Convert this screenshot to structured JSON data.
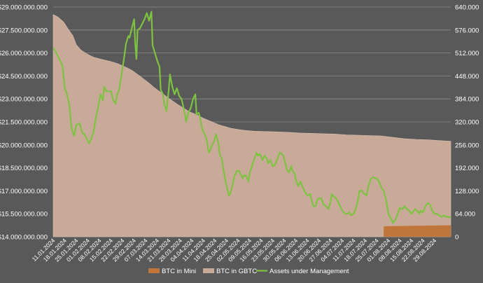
{
  "chart_data": {
    "type": "area",
    "title": "",
    "xlabel": "",
    "ylabel": "",
    "ylabel_right": "",
    "grid": true,
    "legend_position": "bottom",
    "y_left": {
      "range": [
        14000000,
        29000000
      ],
      "ticks": [
        "$14.000.000.000",
        "$15.500.000.000",
        "$17.000.000.000",
        "$18.500.000.000",
        "$20.000.000.000",
        "$21.500.000.000",
        "$23.000.000.000",
        "$24.500.000.000",
        "$26.000.000.000",
        "$27.500.000.000",
        "$29.000.000.000"
      ]
    },
    "y_right": {
      "range": [
        0,
        640000
      ],
      "ticks": [
        "0",
        "64.000",
        "128.000",
        "192.000",
        "256.000",
        "320.000",
        "384.000",
        "448.000",
        "512.000",
        "576.000",
        "640.000"
      ]
    },
    "x_labels": [
      "11.01.2024",
      "18.01.2024",
      "25.01.2024",
      "01.02.2024",
      "08.02.2024",
      "15.02.2024",
      "22.02.2024",
      "29.02.2024",
      "07.03.2024",
      "14.03.2024",
      "21.03.2024",
      "28.03.2024",
      "04.04.2024",
      "11.04.2024",
      "18.04.2024",
      "25.04.2024",
      "02.05.2024",
      "09.05.2024",
      "16.05.2024",
      "23.05.2024",
      "30.05.2024",
      "06.06.2024",
      "13.06.2024",
      "20.06.2024",
      "27.06.2024",
      "04.07.2024",
      "11.07.2024",
      "18.07.2024",
      "25.07.2024",
      "01.08.2024",
      "08.08.2024",
      "15.08.2024",
      "22.08.2024",
      "29.08.2024"
    ],
    "series": [
      {
        "name": "BTC in Mini",
        "axis": "right",
        "color": "#c0753a",
        "points": [
          [
            0,
            0
          ],
          [
            28.6,
            0
          ],
          [
            28.6,
            29000
          ],
          [
            29,
            29500
          ],
          [
            30,
            30000
          ],
          [
            31,
            30500
          ],
          [
            32,
            31000
          ],
          [
            33,
            31500
          ],
          [
            34,
            32000
          ],
          [
            34.4,
            32000
          ]
        ]
      },
      {
        "name": "BTC in GBTC",
        "axis": "right",
        "color": "#c9aa99",
        "points": [
          [
            0,
            619000
          ],
          [
            0.4,
            612000
          ],
          [
            0.9,
            598000
          ],
          [
            1.3,
            578000
          ],
          [
            1.7,
            560000
          ],
          [
            2,
            535000
          ],
          [
            2.4,
            520000
          ],
          [
            3,
            508000
          ],
          [
            3.5,
            500000
          ],
          [
            4.2,
            494000
          ],
          [
            5,
            488000
          ],
          [
            5.6,
            482000
          ],
          [
            6.3,
            472000
          ],
          [
            6.8,
            464000
          ],
          [
            7.3,
            452000
          ],
          [
            7.8,
            440000
          ],
          [
            8.3,
            428000
          ],
          [
            8.8,
            414000
          ],
          [
            9.4,
            400000
          ],
          [
            10,
            386000
          ],
          [
            10.6,
            372000
          ],
          [
            11.2,
            360000
          ],
          [
            11.8,
            348000
          ],
          [
            12.4,
            340000
          ],
          [
            13,
            330000
          ],
          [
            13.6,
            322000
          ],
          [
            14.4,
            311000
          ],
          [
            15.4,
            302000
          ],
          [
            16.4,
            297000
          ],
          [
            17.4,
            294000
          ],
          [
            18.4,
            293000
          ],
          [
            19.5,
            292000
          ],
          [
            20.4,
            291000
          ],
          [
            21.4,
            289000
          ],
          [
            22.4,
            288000
          ],
          [
            23.4,
            287000
          ],
          [
            24.4,
            286000
          ],
          [
            25.4,
            284000
          ],
          [
            26.4,
            283000
          ],
          [
            27.4,
            282000
          ],
          [
            28.4,
            281000
          ],
          [
            29.4,
            277000
          ],
          [
            30.4,
            273000
          ],
          [
            31.4,
            271000
          ],
          [
            32.4,
            270000
          ],
          [
            33.4,
            268000
          ],
          [
            34.4,
            266000
          ]
        ]
      },
      {
        "name": "Assets under Management",
        "axis": "left",
        "color": "#7ec242",
        "points": [
          [
            0,
            26330000
          ],
          [
            0.2,
            26100000
          ],
          [
            0.4,
            25800000
          ],
          [
            0.6,
            25500000
          ],
          [
            0.8,
            25200000
          ],
          [
            1,
            23700000
          ],
          [
            1.2,
            23300000
          ],
          [
            1.4,
            22600000
          ],
          [
            1.6,
            21000000
          ],
          [
            1.8,
            20600000
          ],
          [
            2,
            21300000
          ],
          [
            2.3,
            21400000
          ],
          [
            2.5,
            20800000
          ],
          [
            2.7,
            20700000
          ],
          [
            2.9,
            20400000
          ],
          [
            3.1,
            20100000
          ],
          [
            3.3,
            20400000
          ],
          [
            3.5,
            20900000
          ],
          [
            3.7,
            21800000
          ],
          [
            3.9,
            22500000
          ],
          [
            4.1,
            23300000
          ],
          [
            4.3,
            22900000
          ],
          [
            4.4,
            23800000
          ],
          [
            4.6,
            23500000
          ],
          [
            4.8,
            23500000
          ],
          [
            5,
            23500000
          ],
          [
            5.2,
            22900000
          ],
          [
            5.4,
            22700000
          ],
          [
            5.5,
            23200000
          ],
          [
            5.7,
            23600000
          ],
          [
            5.9,
            24500000
          ],
          [
            6.1,
            25500000
          ],
          [
            6.3,
            26600000
          ],
          [
            6.5,
            27100000
          ],
          [
            6.6,
            27000000
          ],
          [
            6.8,
            27600000
          ],
          [
            7,
            28200000
          ],
          [
            7.1,
            26600000
          ],
          [
            7.2,
            25600000
          ],
          [
            7.3,
            27500000
          ],
          [
            7.5,
            27600000
          ],
          [
            7.7,
            27900000
          ],
          [
            7.9,
            28200000
          ],
          [
            8.1,
            28600000
          ],
          [
            8.3,
            28100000
          ],
          [
            8.5,
            28700000
          ],
          [
            8.6,
            26500000
          ],
          [
            8.8,
            26000000
          ],
          [
            9,
            25500000
          ],
          [
            9.2,
            25100000
          ],
          [
            9.3,
            23600000
          ],
          [
            9.5,
            23300000
          ],
          [
            9.6,
            22700000
          ],
          [
            9.8,
            22200000
          ],
          [
            10,
            23600000
          ],
          [
            10.1,
            24600000
          ],
          [
            10.3,
            23800000
          ],
          [
            10.5,
            23300000
          ],
          [
            10.7,
            23700000
          ],
          [
            10.9,
            23200000
          ],
          [
            11.1,
            23000000
          ],
          [
            11.2,
            22700000
          ],
          [
            11.4,
            22000000
          ],
          [
            11.5,
            21500000
          ],
          [
            11.7,
            22100000
          ],
          [
            11.9,
            22400000
          ],
          [
            12.1,
            23000000
          ],
          [
            12.3,
            23300000
          ],
          [
            12.4,
            22000000
          ],
          [
            12.6,
            22100000
          ],
          [
            12.7,
            21800000
          ],
          [
            12.9,
            21000000
          ],
          [
            13.1,
            20700000
          ],
          [
            13.3,
            20300000
          ],
          [
            13.4,
            19700000
          ],
          [
            13.5,
            19500000
          ],
          [
            13.7,
            19900000
          ],
          [
            13.9,
            20200000
          ],
          [
            14.1,
            20700000
          ],
          [
            14.3,
            20100000
          ],
          [
            14.4,
            19400000
          ],
          [
            14.6,
            19100000
          ],
          [
            14.7,
            18500000
          ],
          [
            14.9,
            17700000
          ],
          [
            15,
            17300000
          ],
          [
            15.2,
            16700000
          ],
          [
            15.3,
            16800000
          ],
          [
            15.5,
            17300000
          ],
          [
            15.7,
            18000000
          ],
          [
            15.9,
            18300000
          ],
          [
            16.1,
            18300000
          ],
          [
            16.2,
            18100000
          ],
          [
            16.4,
            17800000
          ],
          [
            16.5,
            18000000
          ],
          [
            16.7,
            18000000
          ],
          [
            16.9,
            17600000
          ],
          [
            17,
            18200000
          ],
          [
            17.2,
            18600000
          ],
          [
            17.4,
            19100000
          ],
          [
            17.6,
            19500000
          ],
          [
            17.7,
            19300000
          ],
          [
            17.9,
            19400000
          ],
          [
            18.1,
            19000000
          ],
          [
            18.3,
            19300000
          ],
          [
            18.5,
            19100000
          ],
          [
            18.6,
            18800000
          ],
          [
            18.8,
            19000000
          ],
          [
            19,
            18600000
          ],
          [
            19.2,
            18700000
          ],
          [
            19.4,
            19100000
          ],
          [
            19.6,
            19500000
          ],
          [
            19.8,
            19400000
          ],
          [
            19.9,
            19300000
          ],
          [
            20.1,
            18800000
          ],
          [
            20.2,
            18400000
          ],
          [
            20.4,
            18200000
          ],
          [
            20.6,
            18600000
          ],
          [
            20.7,
            18300000
          ],
          [
            20.9,
            18100000
          ],
          [
            21,
            17700000
          ],
          [
            21.2,
            17300000
          ],
          [
            21.4,
            17600000
          ],
          [
            21.6,
            17200000
          ],
          [
            21.8,
            16900000
          ],
          [
            22,
            16700000
          ],
          [
            22.2,
            16800000
          ],
          [
            22.4,
            16300000
          ],
          [
            22.5,
            16000000
          ],
          [
            22.7,
            16000000
          ],
          [
            22.9,
            16500000
          ],
          [
            23.1,
            16500000
          ],
          [
            23.2,
            16500000
          ],
          [
            23.4,
            16100000
          ],
          [
            23.6,
            16000000
          ],
          [
            23.8,
            15800000
          ],
          [
            24,
            16300000
          ],
          [
            24.1,
            16800000
          ],
          [
            24.3,
            16600000
          ],
          [
            24.5,
            16500000
          ],
          [
            24.7,
            16200000
          ],
          [
            24.9,
            15900000
          ],
          [
            25.1,
            15600000
          ],
          [
            25.3,
            15500000
          ],
          [
            25.5,
            15500000
          ],
          [
            25.6,
            15600000
          ],
          [
            25.8,
            15400000
          ],
          [
            26,
            15500000
          ],
          [
            26.2,
            15900000
          ],
          [
            26.4,
            16500000
          ],
          [
            26.5,
            17000000
          ],
          [
            26.7,
            17000000
          ],
          [
            26.9,
            16800000
          ],
          [
            27.1,
            16700000
          ],
          [
            27.3,
            17400000
          ],
          [
            27.5,
            17800000
          ],
          [
            27.7,
            17900000
          ],
          [
            27.9,
            17800000
          ],
          [
            28,
            17800000
          ],
          [
            28.2,
            17600000
          ],
          [
            28.4,
            17200000
          ],
          [
            28.6,
            17000000
          ],
          [
            28.8,
            16400000
          ],
          [
            29,
            15500000
          ],
          [
            29.2,
            15200000
          ],
          [
            29.4,
            14900000
          ],
          [
            29.6,
            15100000
          ],
          [
            29.8,
            15500000
          ],
          [
            30,
            15900000
          ],
          [
            30.2,
            15800000
          ],
          [
            30.4,
            16000000
          ],
          [
            30.6,
            15800000
          ],
          [
            30.8,
            15700000
          ],
          [
            31,
            15500000
          ],
          [
            31.1,
            15600000
          ],
          [
            31.3,
            15800000
          ],
          [
            31.5,
            15700000
          ],
          [
            31.7,
            15500000
          ],
          [
            31.8,
            15700000
          ],
          [
            32,
            15600000
          ],
          [
            32.2,
            16000000
          ],
          [
            32.4,
            16200000
          ],
          [
            32.6,
            16100000
          ],
          [
            32.8,
            15700000
          ],
          [
            33,
            15500000
          ],
          [
            33.2,
            15500000
          ],
          [
            33.4,
            15400000
          ],
          [
            33.6,
            15300000
          ],
          [
            33.8,
            15400000
          ],
          [
            34,
            15300000
          ],
          [
            34.2,
            15300000
          ],
          [
            34.4,
            15250000
          ]
        ]
      }
    ]
  }
}
